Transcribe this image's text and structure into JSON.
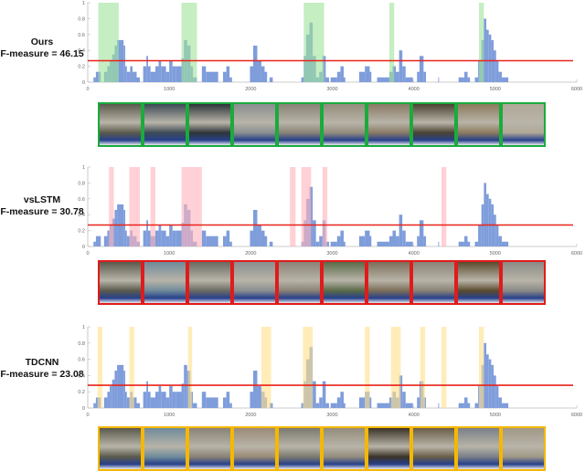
{
  "chart_data": [
    {
      "type": "bar",
      "panel": "Ours",
      "title": "Ours",
      "subtitle": "F-measure = 46.15",
      "xlabel": "",
      "ylabel": "",
      "xlim": [
        0,
        6000
      ],
      "ylim": [
        0,
        1
      ],
      "xticks": [
        0,
        1000,
        2000,
        3000,
        4000,
        5000,
        6000
      ],
      "yticks": [
        0,
        0.2,
        0.4,
        0.6,
        0.8,
        1
      ],
      "threshold": 0.27,
      "highlight_color": "#9ee39a",
      "highlights": [
        [
          130,
          380
        ],
        [
          1150,
          1340
        ],
        [
          2650,
          2900
        ],
        [
          3700,
          3760
        ],
        [
          4800,
          4860
        ]
      ],
      "thumb_border": "#1aab3c"
    },
    {
      "type": "bar",
      "panel": "vsLSTM",
      "title": "vsLSTM",
      "subtitle": "F-measure = 30.78",
      "xlabel": "",
      "ylabel": "",
      "xlim": [
        0,
        6000
      ],
      "ylim": [
        0,
        1
      ],
      "xticks": [
        0,
        1000,
        2000,
        3000,
        4000,
        5000,
        6000
      ],
      "yticks": [
        0,
        0.2,
        0.4,
        0.6,
        0.8,
        1
      ],
      "threshold": 0.27,
      "highlight_color": "#ffb3ba",
      "highlights": [
        [
          260,
          320
        ],
        [
          510,
          640
        ],
        [
          770,
          830
        ],
        [
          1150,
          1400
        ],
        [
          2480,
          2550
        ],
        [
          2620,
          2740
        ],
        [
          2880,
          2940
        ],
        [
          4340,
          4400
        ]
      ],
      "thumb_border": "#e01b1b"
    },
    {
      "type": "bar",
      "panel": "TDCNN",
      "title": "TDCNN",
      "subtitle": "F-measure = 23.08",
      "xlabel": "",
      "ylabel": "",
      "xlim": [
        0,
        6000
      ],
      "ylim": [
        0,
        1
      ],
      "xticks": [
        0,
        1000,
        2000,
        3000,
        4000,
        5000,
        6000
      ],
      "yticks": [
        0,
        0.2,
        0.4,
        0.6,
        0.8,
        1
      ],
      "threshold": 0.28,
      "highlight_color": "#ffe08a",
      "highlights": [
        [
          120,
          180
        ],
        [
          510,
          570
        ],
        [
          1230,
          1280
        ],
        [
          2130,
          2250
        ],
        [
          2640,
          2760
        ],
        [
          3400,
          3460
        ],
        [
          3720,
          3840
        ],
        [
          4080,
          4140
        ],
        [
          4340,
          4400
        ],
        [
          4800,
          4860
        ]
      ],
      "thumb_border": "#f5b800"
    }
  ],
  "shared_scores": {
    "bar_color": "#7f9ddb",
    "segments": [
      [
        70,
        100,
        0.06
      ],
      [
        100,
        160,
        0.13
      ],
      [
        200,
        240,
        0.13
      ],
      [
        240,
        270,
        0.2
      ],
      [
        270,
        300,
        0.27
      ],
      [
        300,
        330,
        0.35
      ],
      [
        330,
        360,
        0.46
      ],
      [
        360,
        440,
        0.53
      ],
      [
        440,
        460,
        0.46
      ],
      [
        460,
        480,
        0.2
      ],
      [
        480,
        520,
        0.13
      ],
      [
        520,
        550,
        0.2
      ],
      [
        550,
        600,
        0.13
      ],
      [
        600,
        640,
        0.06
      ],
      [
        680,
        720,
        0.2
      ],
      [
        720,
        740,
        0.33
      ],
      [
        740,
        770,
        0.2
      ],
      [
        770,
        830,
        0.13
      ],
      [
        830,
        870,
        0.2
      ],
      [
        870,
        900,
        0.27
      ],
      [
        900,
        960,
        0.2
      ],
      [
        960,
        1000,
        0.13
      ],
      [
        1000,
        1040,
        0.27
      ],
      [
        1040,
        1080,
        0.2
      ],
      [
        1080,
        1150,
        0.2
      ],
      [
        1150,
        1180,
        0.3
      ],
      [
        1180,
        1220,
        0.53
      ],
      [
        1220,
        1260,
        0.46
      ],
      [
        1260,
        1290,
        0.2
      ],
      [
        1290,
        1340,
        0.06
      ],
      [
        1400,
        1450,
        0.2
      ],
      [
        1450,
        1600,
        0.13
      ],
      [
        1660,
        1700,
        0.13
      ],
      [
        1700,
        1740,
        0.2
      ],
      [
        1740,
        1770,
        0.06
      ],
      [
        1990,
        2030,
        0.2
      ],
      [
        2030,
        2080,
        0.46
      ],
      [
        2080,
        2130,
        0.27
      ],
      [
        2130,
        2170,
        0.2
      ],
      [
        2170,
        2200,
        0.13
      ],
      [
        2230,
        2270,
        0.06
      ],
      [
        2620,
        2650,
        0.06
      ],
      [
        2650,
        2680,
        0.33
      ],
      [
        2680,
        2720,
        0.6
      ],
      [
        2720,
        2760,
        0.75
      ],
      [
        2760,
        2800,
        0.33
      ],
      [
        2800,
        2840,
        0.06
      ],
      [
        2840,
        2880,
        0.13
      ],
      [
        2880,
        2920,
        0.33
      ],
      [
        2920,
        2960,
        0.06
      ],
      [
        2980,
        3060,
        0.06
      ],
      [
        3060,
        3100,
        0.13
      ],
      [
        3100,
        3140,
        0.2
      ],
      [
        3140,
        3160,
        0.06
      ],
      [
        3330,
        3400,
        0.13
      ],
      [
        3400,
        3460,
        0.2
      ],
      [
        3460,
        3480,
        0.13
      ],
      [
        3550,
        3700,
        0.06
      ],
      [
        3700,
        3740,
        0.13
      ],
      [
        3740,
        3780,
        0.2
      ],
      [
        3780,
        3820,
        0.13
      ],
      [
        3820,
        3860,
        0.4
      ],
      [
        3860,
        3900,
        0.2
      ],
      [
        3900,
        3990,
        0.06
      ],
      [
        4040,
        4070,
        0.13
      ],
      [
        4070,
        4120,
        0.33
      ],
      [
        4120,
        4150,
        0.13
      ],
      [
        4300,
        4310,
        0.06
      ],
      [
        4550,
        4620,
        0.06
      ],
      [
        4620,
        4660,
        0.13
      ],
      [
        4660,
        4690,
        0.06
      ],
      [
        4750,
        4790,
        0.06
      ],
      [
        4790,
        4830,
        0.27
      ],
      [
        4830,
        4860,
        0.53
      ],
      [
        4860,
        4890,
        0.8
      ],
      [
        4890,
        4920,
        0.66
      ],
      [
        4920,
        4950,
        0.6
      ],
      [
        4950,
        4980,
        0.53
      ],
      [
        4980,
        5010,
        0.4
      ],
      [
        5010,
        5040,
        0.27
      ],
      [
        5040,
        5080,
        0.13
      ],
      [
        5080,
        5160,
        0.06
      ]
    ]
  },
  "labels": {
    "panel1_title": "Ours",
    "panel1_score": "F-measure = 46.15",
    "panel2_title": "vsLSTM",
    "panel2_score": "F-measure = 30.78",
    "panel3_title": "TDCNN",
    "panel3_score": "F-measure = 23.08"
  },
  "thumbnails": {
    "count_per_panel": 10,
    "panel1": [
      "#5a5a4c",
      "#3c4a56",
      "#2e3438",
      "#8a8e90",
      "#8a8276",
      "#948c7c",
      "#8a7a66",
      "#4a4232",
      "#8c7a5c",
      "#b0a898"
    ],
    "panel2": [
      "#5a5a4c",
      "#6e8a9a",
      "#6a6a62",
      "#8a8e90",
      "#8a8276",
      "#5a6a48",
      "#7c6e58",
      "#8a8276",
      "#5a4a2e",
      "#8a8a86"
    ],
    "panel3": [
      "#5a5a4c",
      "#6e8a9a",
      "#8a8276",
      "#9a8a76",
      "#7c7a70",
      "#948c7c",
      "#3a3226",
      "#6a5e48",
      "#7a8088",
      "#a09886"
    ]
  }
}
